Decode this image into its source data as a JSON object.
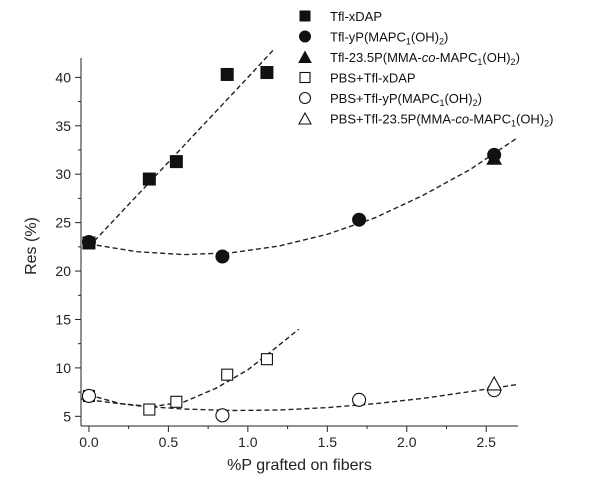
{
  "chart_data": {
    "type": "scatter",
    "xlabel": "%P grafted on fibers",
    "ylabel": "Res (%)",
    "xlim": [
      -0.05,
      2.7
    ],
    "ylim": [
      4,
      42
    ],
    "xticks": [
      "0.0",
      "0.5",
      "1.0",
      "1.5",
      "2.0",
      "2.5"
    ],
    "yticks": [
      "5",
      "10",
      "15",
      "20",
      "25",
      "30",
      "35",
      "40"
    ],
    "xtick_values": [
      0,
      0.5,
      1.0,
      1.5,
      2.0,
      2.5
    ],
    "ytick_values": [
      5,
      10,
      15,
      20,
      25,
      30,
      35,
      40
    ],
    "legend_position": "top-right",
    "series": [
      {
        "name": "Tfl-xDAP",
        "marker": "square-filled",
        "x": [
          0.0,
          0.38,
          0.55,
          0.87,
          1.12
        ],
        "y": [
          22.9,
          29.5,
          31.3,
          40.3,
          40.5
        ],
        "fit": "linear"
      },
      {
        "name": "Tfl-yP(MAPC1(OH)2)",
        "marker": "circle-filled",
        "x": [
          0.0,
          0.84,
          1.7,
          2.55
        ],
        "y": [
          23.0,
          21.5,
          25.3,
          32.0
        ],
        "fit": "quadratic"
      },
      {
        "name": "Tfl-23.5P(MMA-co-MAPC1(OH)2)",
        "marker": "triangle-filled",
        "x": [
          2.55
        ],
        "y": [
          31.7
        ]
      },
      {
        "name": "PBS+Tfl-xDAP",
        "marker": "square-open",
        "x": [
          0.0,
          0.38,
          0.55,
          0.87,
          1.12
        ],
        "y": [
          7.1,
          5.7,
          6.5,
          9.3,
          10.9
        ],
        "fit": "quadratic"
      },
      {
        "name": "PBS+Tfl-yP(MAPC1(OH)2)",
        "marker": "circle-open",
        "x": [
          0.0,
          0.84,
          1.7,
          2.55
        ],
        "y": [
          7.1,
          5.1,
          6.7,
          7.7
        ],
        "fit": "quadratic"
      },
      {
        "name": "PBS+Tfl-23.5P(MMA-co-MAPC1(OH)2)",
        "marker": "triangle-open",
        "x": [
          2.55
        ],
        "y": [
          8.4
        ]
      }
    ],
    "fit_lines": [
      {
        "series": "Tfl-xDAP",
        "x": [
          0.0,
          0.2,
          0.4,
          0.6,
          0.8,
          1.0,
          1.17
        ],
        "y": [
          22.5,
          26.0,
          29.5,
          33.0,
          36.5,
          40.0,
          43.0
        ]
      },
      {
        "series": "Tfl-yP(MAPC1(OH)2)",
        "x": [
          0.0,
          0.3,
          0.6,
          0.9,
          1.2,
          1.5,
          1.8,
          2.1,
          2.4,
          2.7
        ],
        "y": [
          22.8,
          22.0,
          21.7,
          21.9,
          22.6,
          23.8,
          25.5,
          27.8,
          30.5,
          33.8
        ]
      },
      {
        "series": "PBS+Tfl-xDAP",
        "x": [
          0.0,
          0.2,
          0.4,
          0.6,
          0.8,
          1.0,
          1.2,
          1.32
        ],
        "y": [
          7.2,
          6.3,
          6.0,
          6.5,
          7.9,
          9.8,
          12.4,
          14.0
        ]
      },
      {
        "series": "PBS+Tfl-yP(MAPC1(OH)2)",
        "x": [
          -0.05,
          0.3,
          0.6,
          0.9,
          1.2,
          1.5,
          1.8,
          2.1,
          2.4,
          2.7
        ],
        "y": [
          6.8,
          6.1,
          5.75,
          5.6,
          5.65,
          5.9,
          6.3,
          6.85,
          7.55,
          8.3
        ]
      }
    ]
  },
  "legend": {
    "entries": [
      {
        "id": "tfl-xdap",
        "parts": [
          [
            "n",
            "Tfl-xDAP"
          ]
        ]
      },
      {
        "id": "tfl-yp",
        "parts": [
          [
            "n",
            "Tfl-yP(MAPC"
          ],
          [
            "s",
            "1"
          ],
          [
            "n",
            "(OH)"
          ],
          [
            "s",
            "2"
          ],
          [
            "n",
            ")"
          ]
        ]
      },
      {
        "id": "tfl-23-5p",
        "parts": [
          [
            "n",
            "Tfl-23.5P(MMA-"
          ],
          [
            "i",
            "co"
          ],
          [
            "n",
            "-MAPC"
          ],
          [
            "s",
            "1"
          ],
          [
            "n",
            "(OH)"
          ],
          [
            "s",
            "2"
          ],
          [
            "n",
            ")"
          ]
        ]
      },
      {
        "id": "pbs-tfl-xdap",
        "parts": [
          [
            "n",
            "PBS+Tfl-xDAP"
          ]
        ]
      },
      {
        "id": "pbs-tfl-yp",
        "parts": [
          [
            "n",
            "PBS+Tfl-yP(MAPC"
          ],
          [
            "s",
            "1"
          ],
          [
            "n",
            "(OH)"
          ],
          [
            "s",
            "2"
          ],
          [
            "n",
            ")"
          ]
        ]
      },
      {
        "id": "pbs-tfl-23-5p",
        "parts": [
          [
            "n",
            "PBS+Tfl-23.5P(MMA-"
          ],
          [
            "i",
            "co"
          ],
          [
            "n",
            "-MAPC"
          ],
          [
            "s",
            "1"
          ],
          [
            "n",
            "(OH)"
          ],
          [
            "s",
            "2"
          ],
          [
            "n",
            ")"
          ]
        ]
      }
    ]
  }
}
